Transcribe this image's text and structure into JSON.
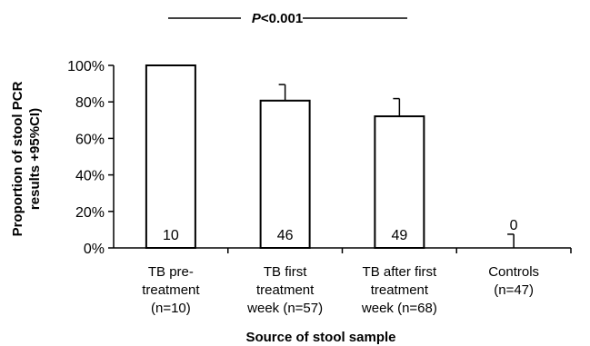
{
  "chart_data": {
    "type": "bar",
    "ylabel_line1": "Proportion of stool PCR",
    "ylabel_line2": "results +95%CI)",
    "xlabel": "Source of stool sample",
    "ylim": [
      0,
      100
    ],
    "yticks": [
      "0%",
      "20%",
      "40%",
      "60%",
      "80%",
      "100%"
    ],
    "categories": [
      [
        "TB pre-",
        "treatment",
        "(n=10)"
      ],
      [
        "TB first",
        "treatment",
        "week (n=57)"
      ],
      [
        "TB after first",
        "treatment",
        "week (n=68)"
      ],
      [
        "Controls",
        "(n=47)"
      ]
    ],
    "values": [
      100,
      80.7,
      72.1,
      0
    ],
    "error_upper": [
      100,
      89.5,
      81.8,
      7.5
    ],
    "bar_labels": [
      "10",
      "46",
      "49",
      "0"
    ],
    "annotation": {
      "text_prefix": "P",
      "text_rest": "<0.001"
    }
  }
}
